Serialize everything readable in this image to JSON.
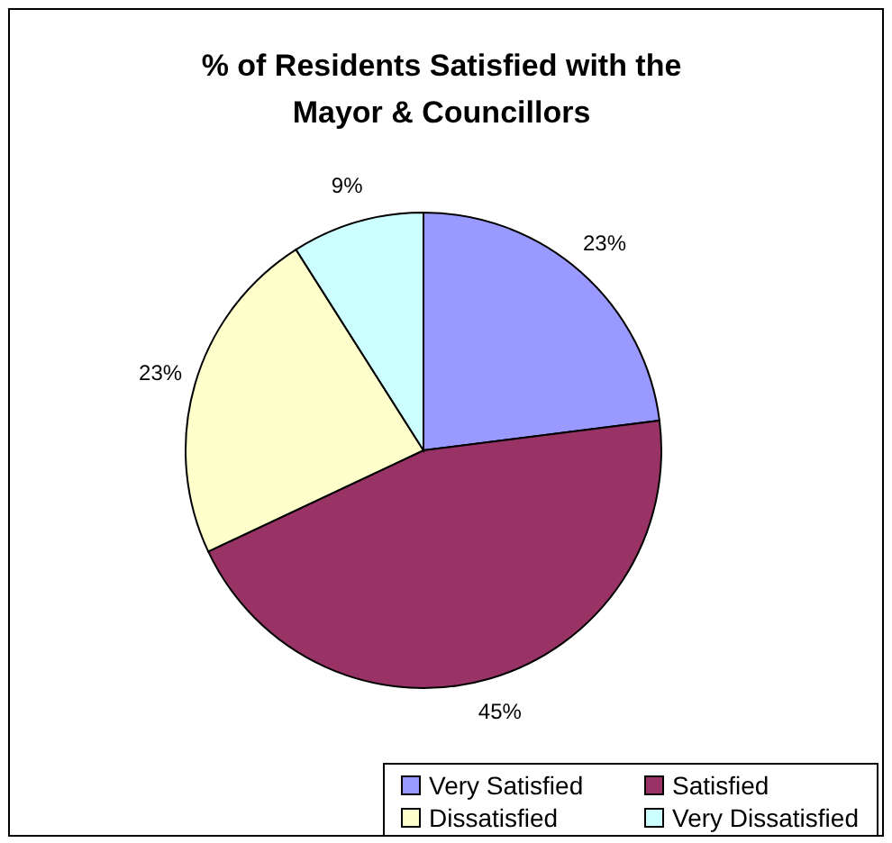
{
  "chart_data": {
    "type": "pie",
    "title": "% of Residents Satisfied with the Mayor & Councillors",
    "categories": [
      "Very Satisfied",
      "Satisfied",
      "Dissatisfied",
      "Very Dissatisfied"
    ],
    "values": [
      23,
      45,
      23,
      9
    ],
    "colors": [
      "#9999ff",
      "#993366",
      "#ffffcc",
      "#ccffff"
    ],
    "value_labels": [
      "23%",
      "45%",
      "23%",
      "9%"
    ],
    "legend": "bottom"
  }
}
